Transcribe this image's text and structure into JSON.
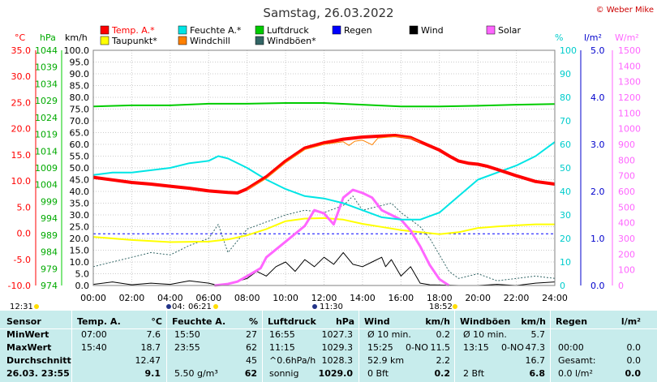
{
  "title": "Samstag, 26.03.2022",
  "copyright": "© Weber Mike",
  "unit_labels": {
    "temp": "°C",
    "hpa": "hPa",
    "kmh": "km/h",
    "pct": "%",
    "lm2": "l/m²",
    "wm2": "W/m²"
  },
  "legend": [
    {
      "label": "Temp. A.*",
      "color": "#ff0000"
    },
    {
      "label": "Feuchte A.*",
      "color": "#00e5e5"
    },
    {
      "label": "Luftdruck",
      "color": "#00cc00"
    },
    {
      "label": "Regen",
      "color": "#0000ff"
    },
    {
      "label": "Wind",
      "color": "#000000"
    },
    {
      "label": "Solar",
      "color": "#ff66ff"
    },
    {
      "label": "Taupunkt*",
      "color": "#ffff00"
    },
    {
      "label": "Windchill",
      "color": "#ff8000"
    },
    {
      "label": "Windböen*",
      "color": "#336666"
    }
  ],
  "sun": {
    "rise": "06:21",
    "set": "18:52",
    "moon_rise": "12:31",
    "moon_set": "11:30",
    "moon_left": "04:"
  },
  "chart_data": {
    "type": "line",
    "x_ticks": [
      "00:00",
      "02:00",
      "04:00",
      "06:00",
      "08:00",
      "10:00",
      "12:00",
      "14:00",
      "16:00",
      "18:00",
      "20:00",
      "22:00",
      "24:00"
    ],
    "axes": {
      "temp": {
        "min": -10,
        "max": 35,
        "ticks": [
          "35.0",
          "30.0",
          "25.0",
          "20.0",
          "15.0",
          "10.0",
          "5.0",
          "0.0",
          "-5.0",
          "-10.0"
        ]
      },
      "hpa": {
        "min": 974,
        "max": 1044,
        "ticks": [
          "1044",
          "1039",
          "1034",
          "1029",
          "1024",
          "1019",
          "1014",
          "1009",
          "1004",
          "999",
          "994",
          "989",
          "984",
          "979",
          "974"
        ]
      },
      "kmh": {
        "min": 0,
        "max": 100,
        "ticks": [
          "100.0",
          "95.0",
          "90.0",
          "85.0",
          "80.0",
          "75.0",
          "70.0",
          "65.0",
          "60.0",
          "55.0",
          "50.0",
          "45.0",
          "40.0",
          "35.0",
          "30.0",
          "25.0",
          "20.0",
          "15.0",
          "10.0",
          "5.0",
          "0.0"
        ]
      },
      "pct": {
        "min": 0,
        "max": 100,
        "ticks": [
          "100",
          "90",
          "80",
          "70",
          "60",
          "50",
          "40",
          "30",
          "20",
          "10",
          "0"
        ]
      },
      "lm2": {
        "min": 0,
        "max": 5,
        "ticks": [
          "5.0",
          "4.0",
          "3.0",
          "2.0",
          "1.0",
          "0.0"
        ]
      },
      "wm2": {
        "min": 0,
        "max": 1500,
        "ticks": [
          "1500",
          "1400",
          "1300",
          "1200",
          "1100",
          "1000",
          "900",
          "800",
          "700",
          "600",
          "500",
          "400",
          "300",
          "200",
          "100",
          "0"
        ]
      }
    },
    "series": [
      {
        "name": "Temp. A.*",
        "axis": "temp",
        "color": "#ff0000",
        "width": 4,
        "points": [
          [
            0,
            10.7
          ],
          [
            1,
            10.2
          ],
          [
            2,
            9.7
          ],
          [
            3,
            9.4
          ],
          [
            4,
            9.0
          ],
          [
            5,
            8.6
          ],
          [
            6,
            8.1
          ],
          [
            7,
            7.8
          ],
          [
            7.5,
            7.7
          ],
          [
            8,
            8.5
          ],
          [
            9,
            10.8
          ],
          [
            10,
            13.8
          ],
          [
            11,
            16.3
          ],
          [
            12,
            17.3
          ],
          [
            13,
            18.0
          ],
          [
            14,
            18.4
          ],
          [
            15,
            18.6
          ],
          [
            15.7,
            18.7
          ],
          [
            16.5,
            18.3
          ],
          [
            17,
            17.5
          ],
          [
            18,
            15.9
          ],
          [
            18.5,
            14.8
          ],
          [
            19,
            13.8
          ],
          [
            19.5,
            13.4
          ],
          [
            20,
            13.2
          ],
          [
            20.5,
            12.8
          ],
          [
            21,
            12.2
          ],
          [
            22,
            11.0
          ],
          [
            23,
            9.9
          ],
          [
            24,
            9.4
          ]
        ]
      },
      {
        "name": "Windchill",
        "axis": "temp",
        "color": "#ff8000",
        "width": 1,
        "points": [
          [
            8,
            8.3
          ],
          [
            9,
            10.5
          ],
          [
            10,
            13.5
          ],
          [
            11,
            16.0
          ],
          [
            12,
            17.0
          ],
          [
            13,
            17.5
          ],
          [
            13.3,
            16.8
          ],
          [
            13.6,
            17.6
          ],
          [
            14,
            17.8
          ],
          [
            14.5,
            16.9
          ],
          [
            14.8,
            18.2
          ],
          [
            15.7,
            18.5
          ],
          [
            16.5,
            18.2
          ],
          [
            17,
            17.4
          ]
        ]
      },
      {
        "name": "Feuchte A.*",
        "axis": "pct",
        "color": "#00e5e5",
        "width": 2,
        "points": [
          [
            0,
            47
          ],
          [
            1,
            48
          ],
          [
            2,
            48
          ],
          [
            3,
            49
          ],
          [
            4,
            50
          ],
          [
            5,
            52
          ],
          [
            6,
            53
          ],
          [
            6.5,
            55
          ],
          [
            7,
            54
          ],
          [
            8,
            50
          ],
          [
            9,
            45
          ],
          [
            10,
            41
          ],
          [
            11,
            38
          ],
          [
            12,
            37
          ],
          [
            13,
            35
          ],
          [
            14,
            32
          ],
          [
            15,
            29
          ],
          [
            16,
            28
          ],
          [
            17,
            28
          ],
          [
            18,
            31
          ],
          [
            19,
            38
          ],
          [
            20,
            45
          ],
          [
            21,
            48
          ],
          [
            22,
            51
          ],
          [
            23,
            55
          ],
          [
            24,
            61
          ]
        ]
      },
      {
        "name": "Taupunkt*",
        "axis": "temp",
        "color": "#ffff00",
        "width": 2,
        "points": [
          [
            0,
            -0.7
          ],
          [
            2,
            -1.3
          ],
          [
            4,
            -1.7
          ],
          [
            6,
            -1.6
          ],
          [
            7,
            -1.2
          ],
          [
            8,
            -0.4
          ],
          [
            9,
            0.8
          ],
          [
            10,
            2.3
          ],
          [
            11,
            2.8
          ],
          [
            12,
            2.9
          ],
          [
            13,
            2.6
          ],
          [
            14,
            1.8
          ],
          [
            15,
            1.2
          ],
          [
            16,
            0.6
          ],
          [
            17,
            0.2
          ],
          [
            18,
            -0.2
          ],
          [
            19,
            0.2
          ],
          [
            20,
            1.0
          ],
          [
            21,
            1.3
          ],
          [
            22,
            1.5
          ],
          [
            23,
            1.7
          ],
          [
            24,
            1.7
          ]
        ]
      },
      {
        "name": "Luftdruck",
        "axis": "hpa",
        "color": "#00cc00",
        "width": 2,
        "points": [
          [
            0,
            1027.3
          ],
          [
            2,
            1027.6
          ],
          [
            4,
            1027.6
          ],
          [
            6,
            1028.1
          ],
          [
            8,
            1028.1
          ],
          [
            10,
            1028.3
          ],
          [
            12,
            1028.3
          ],
          [
            14,
            1027.8
          ],
          [
            16,
            1027.3
          ],
          [
            18,
            1027.3
          ],
          [
            20,
            1027.5
          ],
          [
            22,
            1027.8
          ],
          [
            24,
            1028.0
          ]
        ]
      },
      {
        "name": "Regen",
        "axis": "lm2",
        "color": "#0000ff",
        "width": 1,
        "dash": "3,3",
        "points": [
          [
            0,
            1.1
          ],
          [
            24,
            1.1
          ]
        ]
      },
      {
        "name": "Solar",
        "axis": "wm2",
        "color": "#ff66ff",
        "width": 3,
        "points": [
          [
            6.3,
            0
          ],
          [
            7,
            10
          ],
          [
            7.5,
            25
          ],
          [
            8,
            60
          ],
          [
            8.7,
            110
          ],
          [
            9,
            180
          ],
          [
            10,
            280
          ],
          [
            11,
            380
          ],
          [
            11.5,
            480
          ],
          [
            12,
            460
          ],
          [
            12.5,
            390
          ],
          [
            13,
            560
          ],
          [
            13.5,
            610
          ],
          [
            14,
            590
          ],
          [
            14.5,
            560
          ],
          [
            15,
            480
          ],
          [
            15.5,
            450
          ],
          [
            16,
            420
          ],
          [
            16.5,
            350
          ],
          [
            17,
            250
          ],
          [
            17.5,
            130
          ],
          [
            18,
            40
          ],
          [
            18.5,
            0
          ]
        ]
      },
      {
        "name": "Windböen*",
        "axis": "kmh",
        "color": "#336666",
        "width": 1,
        "dash": "2,2",
        "points": [
          [
            0,
            8
          ],
          [
            1,
            10
          ],
          [
            2,
            12
          ],
          [
            3,
            14
          ],
          [
            4,
            13
          ],
          [
            5,
            17
          ],
          [
            6,
            20
          ],
          [
            6.5,
            26
          ],
          [
            7,
            14
          ],
          [
            8,
            24
          ],
          [
            9,
            27
          ],
          [
            10,
            30
          ],
          [
            11,
            32
          ],
          [
            12,
            31
          ],
          [
            13,
            34
          ],
          [
            13.5,
            38
          ],
          [
            14,
            32
          ],
          [
            15,
            34
          ],
          [
            15.5,
            35
          ],
          [
            16,
            31
          ],
          [
            17,
            25
          ],
          [
            17.5,
            20
          ],
          [
            18,
            13
          ],
          [
            18.5,
            6
          ],
          [
            19,
            3
          ],
          [
            20,
            5
          ],
          [
            21,
            2
          ],
          [
            22,
            3
          ],
          [
            23,
            4
          ],
          [
            24,
            3
          ]
        ]
      },
      {
        "name": "Wind",
        "axis": "kmh",
        "color": "#000000",
        "width": 1,
        "points": [
          [
            0,
            0.5
          ],
          [
            1,
            1.5
          ],
          [
            2,
            0.3
          ],
          [
            3,
            1.0
          ],
          [
            4,
            0.5
          ],
          [
            5,
            2.0
          ],
          [
            6,
            1.0
          ],
          [
            6.5,
            0
          ],
          [
            7,
            0.5
          ],
          [
            8,
            3
          ],
          [
            8.5,
            6
          ],
          [
            9,
            4
          ],
          [
            9.5,
            8
          ],
          [
            10,
            10
          ],
          [
            10.5,
            6
          ],
          [
            11,
            11
          ],
          [
            11.5,
            8
          ],
          [
            12,
            12
          ],
          [
            12.5,
            9
          ],
          [
            13,
            14
          ],
          [
            13.5,
            9
          ],
          [
            14,
            8
          ],
          [
            14.5,
            10
          ],
          [
            15,
            12
          ],
          [
            15.2,
            8
          ],
          [
            15.5,
            11
          ],
          [
            16,
            4
          ],
          [
            16.5,
            8
          ],
          [
            17,
            1
          ],
          [
            17.5,
            0.3
          ],
          [
            18,
            0.2
          ],
          [
            19,
            0
          ],
          [
            20,
            0
          ],
          [
            21,
            0.5
          ],
          [
            22,
            0
          ],
          [
            23,
            1
          ],
          [
            24,
            1.5
          ]
        ]
      }
    ]
  },
  "table": {
    "headers": {
      "sensor": "Sensor",
      "temp": "Temp. A.",
      "temp_unit": "°C",
      "hum": "Feuchte A.",
      "hum_unit": "%",
      "press": "Luftdruck",
      "press_unit": "hPa",
      "wind": "Wind",
      "wind_unit": "km/h",
      "gust": "Windböen",
      "gust_unit": "km/h",
      "rain": "Regen",
      "rain_unit": "l/m²"
    },
    "rows": [
      {
        "label": "MinWert",
        "c1": "07:00",
        "c2": "7.6",
        "c3": "15:50",
        "c4": "27",
        "c5": "16:55",
        "c6": "1027.3",
        "c7": "Ø 10 min.",
        "c8": "0.2",
        "c9": "Ø 10 min.",
        "c10": "5.7",
        "c11": "",
        "c12": ""
      },
      {
        "label": "MaxWert",
        "c1": "15:40",
        "c2": "18.7",
        "c3": "23:55",
        "c4": "62",
        "c5": "11:15",
        "c6": "1029.3",
        "c7": "15:25",
        "c7b": "0-NO",
        "c8": "11.5",
        "c9": "13:15",
        "c9b": "0-NO",
        "c10": "47.3",
        "c11": "00:00",
        "c12": "0.0"
      },
      {
        "label": "Durchschnitt",
        "c1": "",
        "c2": "12.47",
        "c3": "",
        "c4": "45",
        "c5": "^0.6hPa/h",
        "c6": "1028.3",
        "c7": "52.9 km",
        "c8": "2.2",
        "c9": "",
        "c10": "16.7",
        "c11": "Gesamt:",
        "c12": "0.0"
      },
      {
        "label": "26.03. 23:55",
        "c1": "",
        "c2": "9.1",
        "c3": "5.50 g/m³",
        "c4": "62",
        "c5": "sonnig",
        "c6": "1029.0",
        "c7": "0 Bft",
        "c8": "0.2",
        "c9": "2 Bft",
        "c10": "6.8",
        "c11": "0.0 l/m²",
        "c12": "0.0"
      }
    ]
  }
}
